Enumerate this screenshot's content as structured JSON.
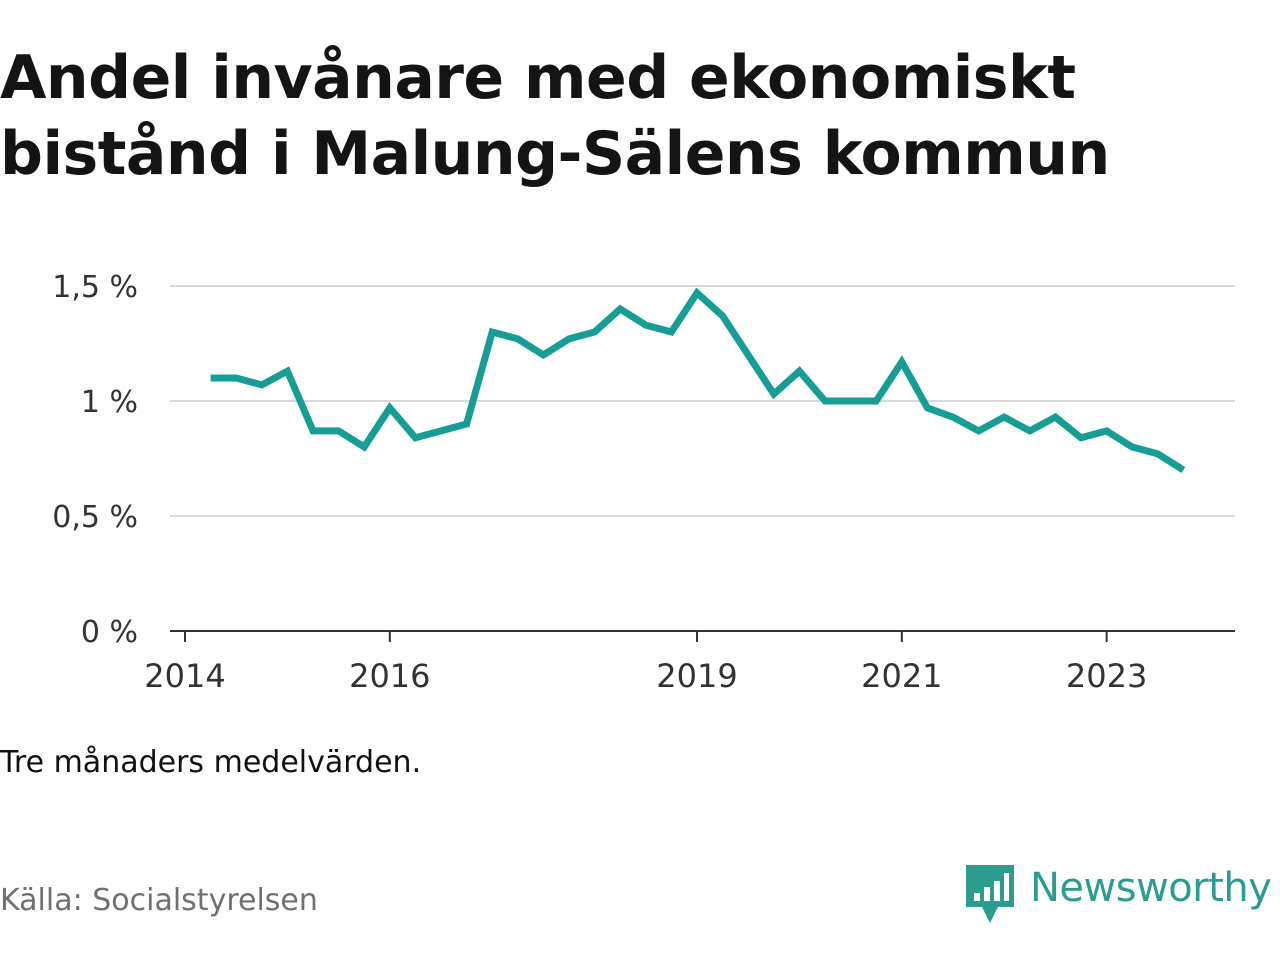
{
  "title": "Andel invånare med ekonomiskt bistånd i Malung-Sälens kommun",
  "note": "Tre månaders medelvärden.",
  "source": "Källa: Socialstyrelsen",
  "brand": {
    "name": "Newsworthy",
    "icon": "bar-chart-speech-bubble-icon"
  },
  "colors": {
    "line": "#169e96",
    "grid": "#d9d9d9",
    "axis": "#333333",
    "brand": "#2a9d8f"
  },
  "chart_data": {
    "type": "line",
    "title": "Andel invånare med ekonomiskt bistånd i Malung-Sälens kommun",
    "xlabel": "",
    "ylabel": "",
    "ylim": [
      0,
      1.5
    ],
    "yticks": [
      {
        "value": 0,
        "label": "0 %"
      },
      {
        "value": 0.5,
        "label": "0,5 %"
      },
      {
        "value": 1,
        "label": "1 %"
      },
      {
        "value": 1.5,
        "label": "1,5 %"
      }
    ],
    "xticks": [
      {
        "value": "2014-01",
        "label": "2014"
      },
      {
        "value": "2016-01",
        "label": "2016"
      },
      {
        "value": "2019-01",
        "label": "2019"
      },
      {
        "value": "2021-01",
        "label": "2021"
      },
      {
        "value": "2023-01",
        "label": "2023"
      }
    ],
    "grid": true,
    "series": [
      {
        "x": [
          "2014-04",
          "2014-07",
          "2014-10",
          "2015-01",
          "2015-04",
          "2015-07",
          "2015-10",
          "2016-01",
          "2016-04",
          "2016-07",
          "2016-10",
          "2017-01",
          "2017-04",
          "2017-07",
          "2017-10",
          "2018-01",
          "2018-04",
          "2018-07",
          "2018-10",
          "2019-01",
          "2019-04",
          "2019-07",
          "2019-10",
          "2020-01",
          "2020-04",
          "2020-07",
          "2020-10",
          "2021-01",
          "2021-04",
          "2021-07",
          "2021-10",
          "2022-01",
          "2022-04",
          "2022-07",
          "2022-10",
          "2023-01",
          "2023-04",
          "2023-07",
          "2023-10"
        ],
        "values": [
          1.1,
          1.1,
          1.07,
          1.13,
          0.87,
          0.87,
          0.8,
          0.97,
          0.84,
          0.87,
          0.9,
          1.3,
          1.27,
          1.2,
          1.27,
          1.3,
          1.4,
          1.33,
          1.3,
          1.47,
          1.37,
          1.2,
          1.03,
          1.13,
          1.0,
          1.0,
          1.0,
          1.17,
          0.97,
          0.93,
          0.87,
          0.93,
          0.87,
          0.93,
          0.84,
          0.87,
          0.8,
          0.77,
          0.7
        ]
      }
    ]
  }
}
